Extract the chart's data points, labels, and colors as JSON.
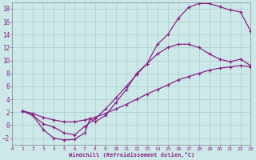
{
  "background_color": "#cce8e8",
  "grid_color": "#aacccc",
  "line_color": "#882288",
  "xlabel": "Windchill (Refroidissement éolien,°C)",
  "xlim": [
    0,
    23
  ],
  "ylim": [
    -3,
    19
  ],
  "xticks": [
    0,
    1,
    2,
    3,
    4,
    5,
    6,
    7,
    8,
    9,
    10,
    11,
    12,
    13,
    14,
    15,
    16,
    17,
    18,
    19,
    20,
    21,
    22,
    23
  ],
  "yticks": [
    -2,
    0,
    2,
    4,
    6,
    8,
    10,
    12,
    14,
    16,
    18
  ],
  "curve1_x": [
    1,
    2,
    3,
    4,
    5,
    6,
    7,
    7.5,
    8,
    9,
    10,
    11,
    12,
    13,
    14,
    15,
    16,
    17,
    18,
    19,
    20,
    21,
    22,
    23
  ],
  "curve1_y": [
    2.2,
    1.5,
    -0.7,
    -2.0,
    -2.3,
    -2.2,
    -1.2,
    1.0,
    0.5,
    1.5,
    3.5,
    5.5,
    8.0,
    9.5,
    12.5,
    14.0,
    16.5,
    18.2,
    18.8,
    18.8,
    18.3,
    17.8,
    17.5,
    14.5
  ],
  "curve2_x": [
    1,
    2,
    3,
    4,
    5,
    6,
    7,
    8,
    9,
    10,
    11,
    12,
    13,
    14,
    15,
    16,
    17,
    18,
    19,
    20,
    21,
    22,
    23
  ],
  "curve2_y": [
    2.2,
    1.5,
    0.2,
    -0.3,
    -1.2,
    -1.5,
    -0.2,
    1.0,
    2.5,
    4.2,
    6.0,
    7.8,
    9.5,
    11.0,
    12.0,
    12.5,
    12.5,
    12.0,
    11.0,
    10.2,
    9.8,
    10.2,
    9.2
  ],
  "curve3_x": [
    1,
    2,
    3,
    4,
    5,
    6,
    7,
    8,
    9,
    10,
    11,
    12,
    13,
    14,
    15,
    16,
    17,
    18,
    19,
    20,
    21,
    22,
    23
  ],
  "curve3_y": [
    2.2,
    1.8,
    1.2,
    0.8,
    0.5,
    0.5,
    0.8,
    1.2,
    1.8,
    2.5,
    3.2,
    4.0,
    4.8,
    5.5,
    6.2,
    7.0,
    7.5,
    8.0,
    8.5,
    8.8,
    9.0,
    9.2,
    9.0
  ]
}
